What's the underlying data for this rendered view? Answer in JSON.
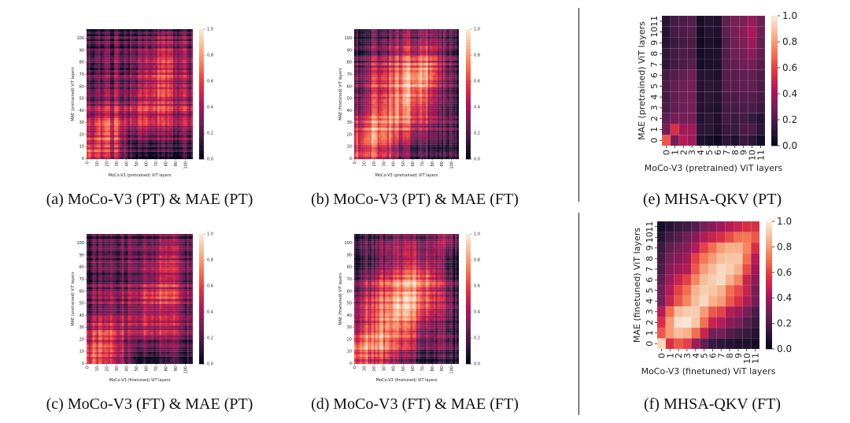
{
  "colormap": {
    "name": "rocket",
    "stops": [
      "#03051A",
      "#35193E",
      "#701F57",
      "#AD1759",
      "#E13342",
      "#F37651",
      "#F6B48F",
      "#FAEBDD"
    ]
  },
  "chart_data": [
    {
      "type": "heatmap",
      "caption": "(a) MoCo-V3 (PT) & MAE (PT)",
      "xlabel": "MoCo-V3 (pretrained) ViT layers",
      "ylabel": "MAE (pretrained) ViT layers",
      "x_ticks": [
        "0",
        "10",
        "20",
        "30",
        "40",
        "50",
        "60",
        "70",
        "80",
        "90",
        "100"
      ],
      "y_ticks": [
        "0",
        "10",
        "20",
        "30",
        "40",
        "50",
        "60",
        "70",
        "80",
        "90",
        "100"
      ],
      "colorbar_ticks": [
        "0.0",
        "0.2",
        "0.4",
        "0.6",
        "0.8",
        "1.0"
      ],
      "zlim": [
        0,
        1
      ],
      "values": [
        [
          0.6,
          0.5,
          0.45,
          0.4,
          0.15,
          0.1,
          0.1,
          0.1,
          0.1,
          0.1,
          0.1
        ],
        [
          0.55,
          0.65,
          0.6,
          0.5,
          0.2,
          0.35,
          0.3,
          0.3,
          0.3,
          0.3,
          0.25
        ],
        [
          0.45,
          0.6,
          0.6,
          0.55,
          0.3,
          0.5,
          0.45,
          0.4,
          0.4,
          0.35,
          0.3
        ],
        [
          0.35,
          0.45,
          0.45,
          0.45,
          0.35,
          0.55,
          0.5,
          0.5,
          0.45,
          0.4,
          0.35
        ],
        [
          0.3,
          0.35,
          0.4,
          0.4,
          0.35,
          0.55,
          0.55,
          0.55,
          0.5,
          0.45,
          0.35
        ],
        [
          0.25,
          0.3,
          0.35,
          0.35,
          0.3,
          0.5,
          0.55,
          0.6,
          0.55,
          0.45,
          0.35
        ],
        [
          0.25,
          0.3,
          0.3,
          0.35,
          0.3,
          0.45,
          0.55,
          0.6,
          0.55,
          0.45,
          0.35
        ],
        [
          0.2,
          0.25,
          0.3,
          0.3,
          0.25,
          0.45,
          0.5,
          0.6,
          0.6,
          0.45,
          0.35
        ],
        [
          0.2,
          0.25,
          0.25,
          0.3,
          0.25,
          0.4,
          0.45,
          0.5,
          0.5,
          0.4,
          0.3
        ],
        [
          0.15,
          0.2,
          0.2,
          0.25,
          0.2,
          0.3,
          0.35,
          0.4,
          0.4,
          0.35,
          0.25
        ],
        [
          0.12,
          0.15,
          0.15,
          0.2,
          0.15,
          0.2,
          0.25,
          0.3,
          0.3,
          0.25,
          0.2
        ]
      ]
    },
    {
      "type": "heatmap",
      "caption": "(b) MoCo-V3 (PT) & MAE (FT)",
      "xlabel": "MoCo-V3 (pretrained) ViT layers",
      "ylabel": "MAE (finetuned) ViT layers",
      "x_ticks": [
        "0",
        "10",
        "20",
        "30",
        "40",
        "50",
        "60",
        "70",
        "80",
        "90",
        "100"
      ],
      "y_ticks": [
        "0",
        "10",
        "20",
        "30",
        "40",
        "50",
        "60",
        "70",
        "80",
        "90",
        "100"
      ],
      "colorbar_ticks": [
        "0.0",
        "0.2",
        "0.4",
        "0.6",
        "0.8",
        "1.0"
      ],
      "zlim": [
        0,
        1
      ],
      "values": [
        [
          0.6,
          0.6,
          0.55,
          0.5,
          0.3,
          0.25,
          0.2,
          0.15,
          0.12,
          0.1,
          0.08
        ],
        [
          0.65,
          0.8,
          0.75,
          0.7,
          0.5,
          0.45,
          0.35,
          0.3,
          0.25,
          0.2,
          0.15
        ],
        [
          0.55,
          0.75,
          0.8,
          0.75,
          0.65,
          0.6,
          0.5,
          0.4,
          0.3,
          0.25,
          0.15
        ],
        [
          0.45,
          0.6,
          0.7,
          0.75,
          0.75,
          0.7,
          0.6,
          0.5,
          0.35,
          0.25,
          0.15
        ],
        [
          0.4,
          0.55,
          0.65,
          0.7,
          0.8,
          0.8,
          0.7,
          0.6,
          0.4,
          0.3,
          0.15
        ],
        [
          0.35,
          0.5,
          0.6,
          0.65,
          0.75,
          0.85,
          0.8,
          0.65,
          0.45,
          0.3,
          0.15
        ],
        [
          0.3,
          0.45,
          0.55,
          0.6,
          0.7,
          0.8,
          0.85,
          0.75,
          0.5,
          0.3,
          0.15
        ],
        [
          0.3,
          0.4,
          0.5,
          0.55,
          0.65,
          0.75,
          0.8,
          0.8,
          0.55,
          0.3,
          0.15
        ],
        [
          0.25,
          0.35,
          0.4,
          0.45,
          0.55,
          0.6,
          0.65,
          0.65,
          0.5,
          0.3,
          0.15
        ],
        [
          0.2,
          0.25,
          0.3,
          0.35,
          0.4,
          0.45,
          0.45,
          0.45,
          0.4,
          0.25,
          0.12
        ],
        [
          0.12,
          0.15,
          0.2,
          0.2,
          0.25,
          0.3,
          0.3,
          0.3,
          0.25,
          0.2,
          0.1
        ]
      ]
    },
    {
      "type": "heatmap",
      "caption": "(c) MoCo-V3 (FT) & MAE (PT)",
      "xlabel": "MoCo-V3 (finetuned) ViT layers",
      "ylabel": "MAE (pretrained) ViT layers",
      "x_ticks": [
        "0",
        "10",
        "20",
        "30",
        "40",
        "50",
        "60",
        "70",
        "80",
        "90",
        "100"
      ],
      "y_ticks": [
        "0",
        "10",
        "20",
        "30",
        "40",
        "50",
        "60",
        "70",
        "80",
        "90",
        "100"
      ],
      "colorbar_ticks": [
        "0.0",
        "0.2",
        "0.4",
        "0.6",
        "0.8",
        "1.0"
      ],
      "zlim": [
        0,
        1
      ],
      "values": [
        [
          0.6,
          0.55,
          0.5,
          0.45,
          0.15,
          0.12,
          0.1,
          0.1,
          0.1,
          0.1,
          0.1
        ],
        [
          0.6,
          0.65,
          0.6,
          0.5,
          0.25,
          0.35,
          0.3,
          0.3,
          0.3,
          0.25,
          0.2
        ],
        [
          0.45,
          0.55,
          0.55,
          0.5,
          0.3,
          0.45,
          0.45,
          0.4,
          0.35,
          0.3,
          0.25
        ],
        [
          0.35,
          0.45,
          0.45,
          0.45,
          0.35,
          0.5,
          0.5,
          0.45,
          0.4,
          0.35,
          0.3
        ],
        [
          0.3,
          0.35,
          0.4,
          0.4,
          0.35,
          0.5,
          0.55,
          0.5,
          0.45,
          0.4,
          0.3
        ],
        [
          0.25,
          0.3,
          0.35,
          0.35,
          0.3,
          0.5,
          0.55,
          0.55,
          0.5,
          0.4,
          0.3
        ],
        [
          0.25,
          0.3,
          0.3,
          0.35,
          0.3,
          0.45,
          0.5,
          0.55,
          0.5,
          0.4,
          0.3
        ],
        [
          0.2,
          0.25,
          0.3,
          0.3,
          0.25,
          0.4,
          0.45,
          0.5,
          0.5,
          0.4,
          0.3
        ],
        [
          0.2,
          0.25,
          0.25,
          0.3,
          0.25,
          0.35,
          0.4,
          0.45,
          0.45,
          0.35,
          0.25
        ],
        [
          0.15,
          0.2,
          0.2,
          0.25,
          0.2,
          0.3,
          0.3,
          0.35,
          0.35,
          0.3,
          0.2
        ],
        [
          0.12,
          0.15,
          0.15,
          0.2,
          0.15,
          0.2,
          0.22,
          0.25,
          0.25,
          0.2,
          0.15
        ]
      ]
    },
    {
      "type": "heatmap",
      "caption": "(d) MoCo-V3 (FT) & MAE (FT)",
      "xlabel": "MoCo-V3 (finetuned) ViT layers",
      "ylabel": "MAE (finetuned) ViT layers",
      "x_ticks": [
        "0",
        "10",
        "20",
        "30",
        "40",
        "50",
        "60",
        "70",
        "80",
        "90",
        "100"
      ],
      "y_ticks": [
        "0",
        "10",
        "20",
        "30",
        "40",
        "50",
        "60",
        "70",
        "80",
        "90",
        "100"
      ],
      "colorbar_ticks": [
        "0.0",
        "0.2",
        "0.4",
        "0.6",
        "0.8",
        "1.0"
      ],
      "zlim": [
        0,
        1
      ],
      "values": [
        [
          0.65,
          0.6,
          0.55,
          0.5,
          0.3,
          0.25,
          0.2,
          0.15,
          0.12,
          0.1,
          0.08
        ],
        [
          0.7,
          0.8,
          0.75,
          0.7,
          0.5,
          0.45,
          0.35,
          0.3,
          0.25,
          0.2,
          0.15
        ],
        [
          0.55,
          0.75,
          0.8,
          0.75,
          0.65,
          0.6,
          0.5,
          0.4,
          0.3,
          0.25,
          0.15
        ],
        [
          0.45,
          0.6,
          0.7,
          0.8,
          0.75,
          0.7,
          0.6,
          0.5,
          0.35,
          0.25,
          0.15
        ],
        [
          0.4,
          0.55,
          0.65,
          0.7,
          0.8,
          0.8,
          0.7,
          0.6,
          0.4,
          0.3,
          0.15
        ],
        [
          0.35,
          0.5,
          0.6,
          0.65,
          0.75,
          0.8,
          0.75,
          0.65,
          0.45,
          0.3,
          0.15
        ],
        [
          0.3,
          0.45,
          0.55,
          0.6,
          0.7,
          0.75,
          0.8,
          0.7,
          0.5,
          0.3,
          0.15
        ],
        [
          0.3,
          0.4,
          0.5,
          0.55,
          0.6,
          0.7,
          0.75,
          0.75,
          0.5,
          0.3,
          0.15
        ],
        [
          0.2,
          0.3,
          0.35,
          0.4,
          0.45,
          0.5,
          0.55,
          0.55,
          0.45,
          0.25,
          0.12
        ],
        [
          0.15,
          0.2,
          0.25,
          0.3,
          0.3,
          0.35,
          0.35,
          0.35,
          0.3,
          0.2,
          0.1
        ],
        [
          0.1,
          0.12,
          0.15,
          0.15,
          0.2,
          0.2,
          0.22,
          0.25,
          0.25,
          0.3,
          0.2
        ]
      ]
    },
    {
      "type": "heatmap",
      "caption": "(e) MHSA-QKV (PT)",
      "xlabel": "MoCo-V3 (pretrained) ViT layers",
      "ylabel": "MAE (pretrained) ViT layers",
      "x_ticks": [
        "0",
        "1",
        "2",
        "3",
        "4",
        "5",
        "6",
        "7",
        "8",
        "9",
        "10",
        "11"
      ],
      "y_ticks": [
        "0",
        "1",
        "2",
        "3",
        "4",
        "5",
        "6",
        "7",
        "8",
        "9",
        "10",
        "11"
      ],
      "colorbar_ticks": [
        "0.0",
        "0.2",
        "0.4",
        "0.6",
        "0.8",
        "1.0"
      ],
      "zlim": [
        0,
        1
      ],
      "values": [
        [
          0.65,
          0.3,
          0.45,
          0.4,
          0.08,
          0.06,
          0.03,
          0.12,
          0.08,
          0.15,
          0.12,
          0.05
        ],
        [
          0.3,
          0.55,
          0.4,
          0.4,
          0.12,
          0.12,
          0.08,
          0.15,
          0.15,
          0.2,
          0.2,
          0.12
        ],
        [
          0.25,
          0.3,
          0.3,
          0.3,
          0.1,
          0.12,
          0.08,
          0.18,
          0.15,
          0.18,
          0.15,
          0.1
        ],
        [
          0.2,
          0.25,
          0.28,
          0.3,
          0.1,
          0.1,
          0.08,
          0.18,
          0.18,
          0.2,
          0.2,
          0.15
        ],
        [
          0.18,
          0.25,
          0.28,
          0.3,
          0.1,
          0.12,
          0.1,
          0.2,
          0.2,
          0.22,
          0.22,
          0.18
        ],
        [
          0.2,
          0.25,
          0.28,
          0.3,
          0.1,
          0.12,
          0.1,
          0.22,
          0.22,
          0.25,
          0.25,
          0.2
        ],
        [
          0.18,
          0.22,
          0.25,
          0.28,
          0.1,
          0.1,
          0.08,
          0.22,
          0.22,
          0.25,
          0.25,
          0.2
        ],
        [
          0.12,
          0.18,
          0.2,
          0.22,
          0.06,
          0.08,
          0.08,
          0.22,
          0.25,
          0.28,
          0.3,
          0.22
        ],
        [
          0.12,
          0.18,
          0.2,
          0.2,
          0.05,
          0.08,
          0.08,
          0.22,
          0.28,
          0.3,
          0.35,
          0.25
        ],
        [
          0.1,
          0.15,
          0.18,
          0.2,
          0.04,
          0.08,
          0.06,
          0.22,
          0.28,
          0.32,
          0.38,
          0.25
        ],
        [
          0.1,
          0.18,
          0.2,
          0.22,
          0.05,
          0.1,
          0.08,
          0.25,
          0.3,
          0.35,
          0.42,
          0.28
        ],
        [
          0.1,
          0.18,
          0.2,
          0.22,
          0.06,
          0.1,
          0.08,
          0.25,
          0.3,
          0.32,
          0.38,
          0.28
        ]
      ]
    },
    {
      "type": "heatmap",
      "caption": "(f) MHSA-QKV (FT)",
      "xlabel": "MoCo-V3 (finetuned) ViT layers",
      "ylabel": "MAE (finetuned) ViT layers",
      "x_ticks": [
        "0",
        "1",
        "2",
        "3",
        "4",
        "5",
        "6",
        "7",
        "8",
        "9",
        "10",
        "11"
      ],
      "y_ticks": [
        "0",
        "1",
        "2",
        "3",
        "4",
        "5",
        "6",
        "7",
        "8",
        "9",
        "10",
        "11"
      ],
      "colorbar_ticks": [
        "0.0",
        "0.2",
        "0.4",
        "0.6",
        "0.8",
        "1.0"
      ],
      "zlim": [
        0,
        1
      ],
      "values": [
        [
          0.95,
          0.55,
          0.65,
          0.6,
          0.4,
          0.25,
          0.15,
          0.12,
          0.1,
          0.08,
          0.08,
          0.06
        ],
        [
          0.65,
          0.8,
          0.88,
          0.85,
          0.7,
          0.5,
          0.3,
          0.3,
          0.22,
          0.18,
          0.15,
          0.1
        ],
        [
          0.55,
          0.8,
          0.97,
          0.98,
          0.9,
          0.7,
          0.5,
          0.45,
          0.35,
          0.3,
          0.22,
          0.15
        ],
        [
          0.45,
          0.7,
          0.88,
          0.92,
          0.92,
          0.8,
          0.65,
          0.6,
          0.45,
          0.4,
          0.3,
          0.2
        ],
        [
          0.3,
          0.5,
          0.65,
          0.75,
          0.88,
          0.95,
          0.85,
          0.8,
          0.65,
          0.55,
          0.45,
          0.3
        ],
        [
          0.3,
          0.45,
          0.6,
          0.7,
          0.85,
          0.92,
          0.9,
          0.85,
          0.7,
          0.62,
          0.5,
          0.3
        ],
        [
          0.25,
          0.4,
          0.5,
          0.6,
          0.75,
          0.88,
          0.92,
          0.95,
          0.85,
          0.75,
          0.5,
          0.35
        ],
        [
          0.2,
          0.35,
          0.4,
          0.45,
          0.65,
          0.8,
          0.88,
          0.95,
          0.92,
          0.85,
          0.62,
          0.4
        ],
        [
          0.18,
          0.3,
          0.35,
          0.4,
          0.6,
          0.72,
          0.8,
          0.88,
          0.9,
          0.9,
          0.7,
          0.45
        ],
        [
          0.15,
          0.25,
          0.3,
          0.35,
          0.45,
          0.6,
          0.7,
          0.8,
          0.85,
          0.85,
          0.75,
          0.55
        ],
        [
          0.1,
          0.18,
          0.22,
          0.28,
          0.35,
          0.45,
          0.5,
          0.55,
          0.62,
          0.7,
          0.72,
          0.65
        ],
        [
          0.05,
          0.1,
          0.15,
          0.18,
          0.22,
          0.3,
          0.35,
          0.4,
          0.45,
          0.5,
          0.55,
          0.55
        ]
      ]
    }
  ]
}
